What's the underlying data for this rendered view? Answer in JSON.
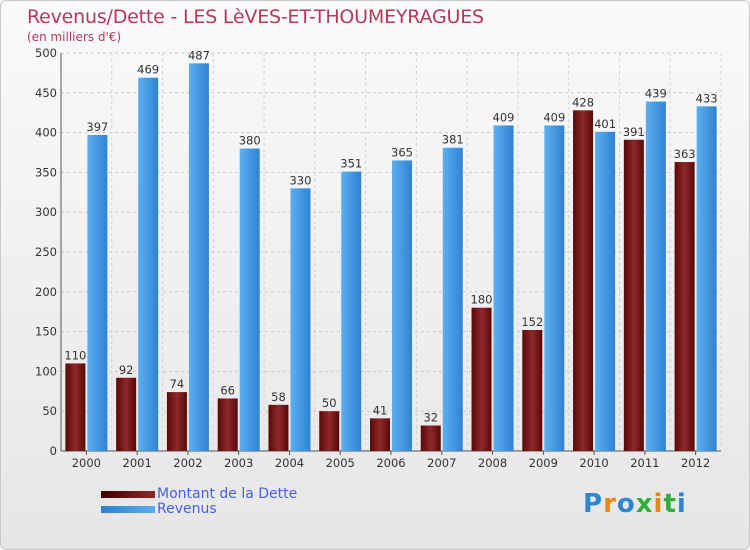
{
  "title": "Revenus/Dette - LES LèVES-ET-THOUMEYRAGUES",
  "subtitle": "(en milliers d'€)",
  "colors": {
    "debt": "#7a1414",
    "revenue": "#3f95de",
    "title": "#b23a5a",
    "legend_text": "#4a5fe0"
  },
  "legend": {
    "debt_label": "Montant de la Dette",
    "revenue_label": "Revenus"
  },
  "logo": {
    "text": "Proxiti"
  },
  "chart_data": {
    "type": "bar",
    "title": "Revenus/Dette - LES LèVES-ET-THOUMEYRAGUES",
    "ylabel": "(en milliers d'€)",
    "categories": [
      "2000",
      "2001",
      "2002",
      "2003",
      "2004",
      "2005",
      "2006",
      "2007",
      "2008",
      "2009",
      "2010",
      "2011",
      "2012"
    ],
    "ylim": [
      0,
      500
    ],
    "yticks": [
      0,
      50,
      100,
      150,
      200,
      250,
      300,
      350,
      400,
      450,
      500
    ],
    "grid": true,
    "legend_position": "bottom-left",
    "series": [
      {
        "name": "Montant de la Dette",
        "values": [
          110,
          92,
          74,
          66,
          58,
          50,
          41,
          32,
          180,
          152,
          428,
          391,
          363
        ]
      },
      {
        "name": "Revenus",
        "values": [
          397,
          469,
          487,
          380,
          330,
          351,
          365,
          381,
          409,
          409,
          401,
          439,
          433
        ]
      }
    ]
  }
}
